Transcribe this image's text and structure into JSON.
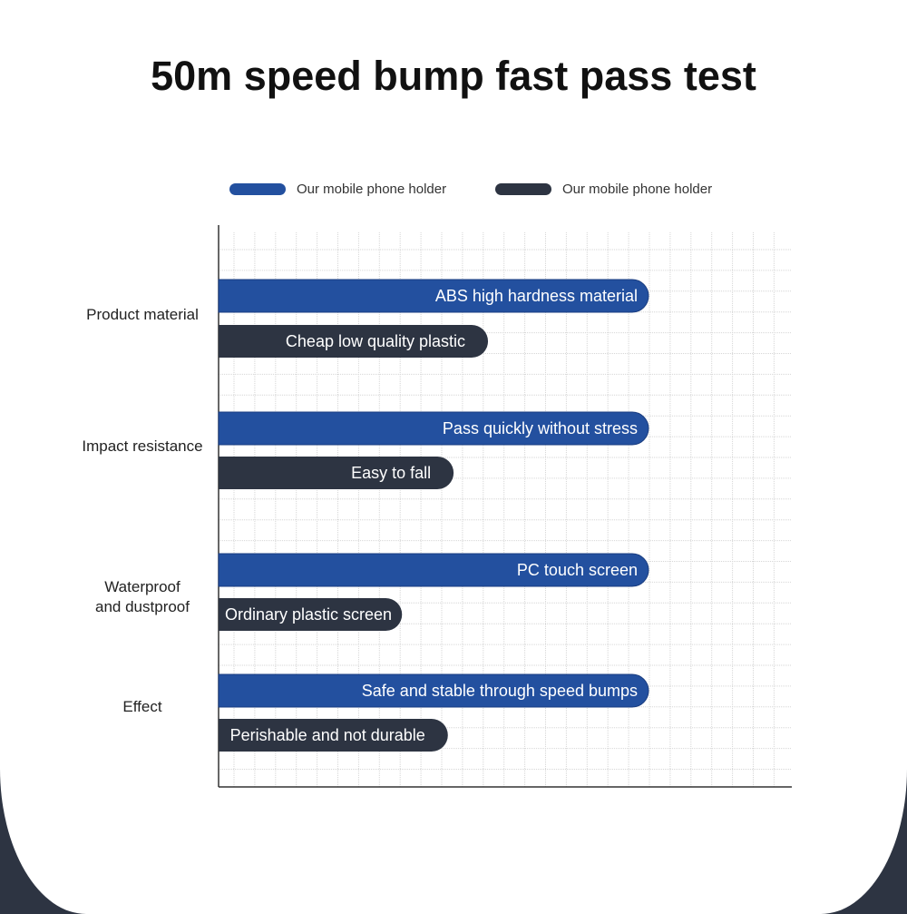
{
  "title": "50m speed bump fast pass test",
  "colors": {
    "ours": "#23509f",
    "other": "#2d3442",
    "background": "#2d3442"
  },
  "chart_data": {
    "type": "bar",
    "orientation": "horizontal",
    "title": "50m speed bump fast pass test",
    "categories": [
      "Product material",
      "Impact resistance",
      "Waterproof and dustproof",
      "Effect"
    ],
    "legend": {
      "placement": "top"
    },
    "grid": true,
    "xlim": [
      0,
      100
    ],
    "series": [
      {
        "name": "Our mobile phone holder",
        "color": "#23509f",
        "values": [
          75,
          75,
          75,
          75
        ],
        "labels": [
          "ABS high hardness material",
          "Pass quickly without stress",
          "PC touch screen",
          "Safe and stable through speed bumps"
        ]
      },
      {
        "name": "Our mobile phone holder",
        "color": "#2d3442",
        "values": [
          47,
          41,
          32,
          40
        ],
        "labels": [
          "Cheap low quality plastic",
          "Easy to fall",
          "Ordinary plastic screen",
          "Perishable and not durable"
        ]
      }
    ]
  }
}
